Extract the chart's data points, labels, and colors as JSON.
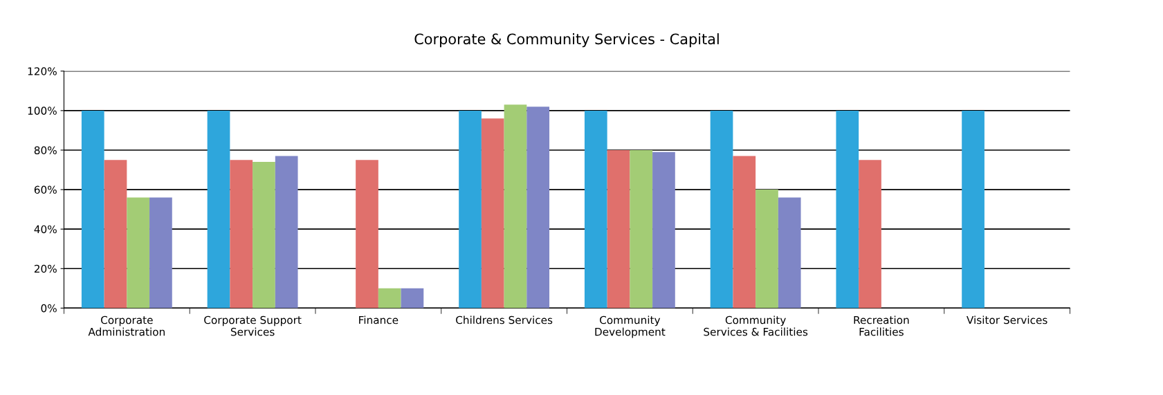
{
  "chart_data": {
    "type": "bar",
    "title": "Corporate & Community Services - Capital",
    "categories": [
      "Corporate\nAdministration",
      "Corporate Support\nServices",
      "Finance",
      "Childrens Services",
      "Community\nDevelopment",
      "Community\nServices & Facilities",
      "Recreation\nFacilities",
      "Visitor Services"
    ],
    "series": [
      {
        "color": "#2ea6dc",
        "values": [
          100,
          100,
          null,
          100,
          100,
          100,
          100,
          100
        ]
      },
      {
        "color": "#e0706c",
        "values": [
          75,
          75,
          75,
          96,
          80,
          77,
          75,
          null
        ]
      },
      {
        "color": "#a3cc75",
        "values": [
          56,
          74,
          10,
          103,
          80,
          60,
          null,
          null
        ]
      },
      {
        "color": "#7f86c6",
        "values": [
          56,
          77,
          10,
          102,
          79,
          56,
          null,
          null
        ]
      }
    ],
    "ylim": [
      0,
      120
    ],
    "yticks": [
      {
        "value": 0,
        "label": "0%"
      },
      {
        "value": 20,
        "label": "20%"
      },
      {
        "value": 40,
        "label": "40%"
      },
      {
        "value": 60,
        "label": "60%"
      },
      {
        "value": 80,
        "label": "80%"
      },
      {
        "value": 100,
        "label": "100%"
      },
      {
        "value": 120,
        "label": "120%"
      }
    ],
    "grid": "y",
    "legend": false
  }
}
